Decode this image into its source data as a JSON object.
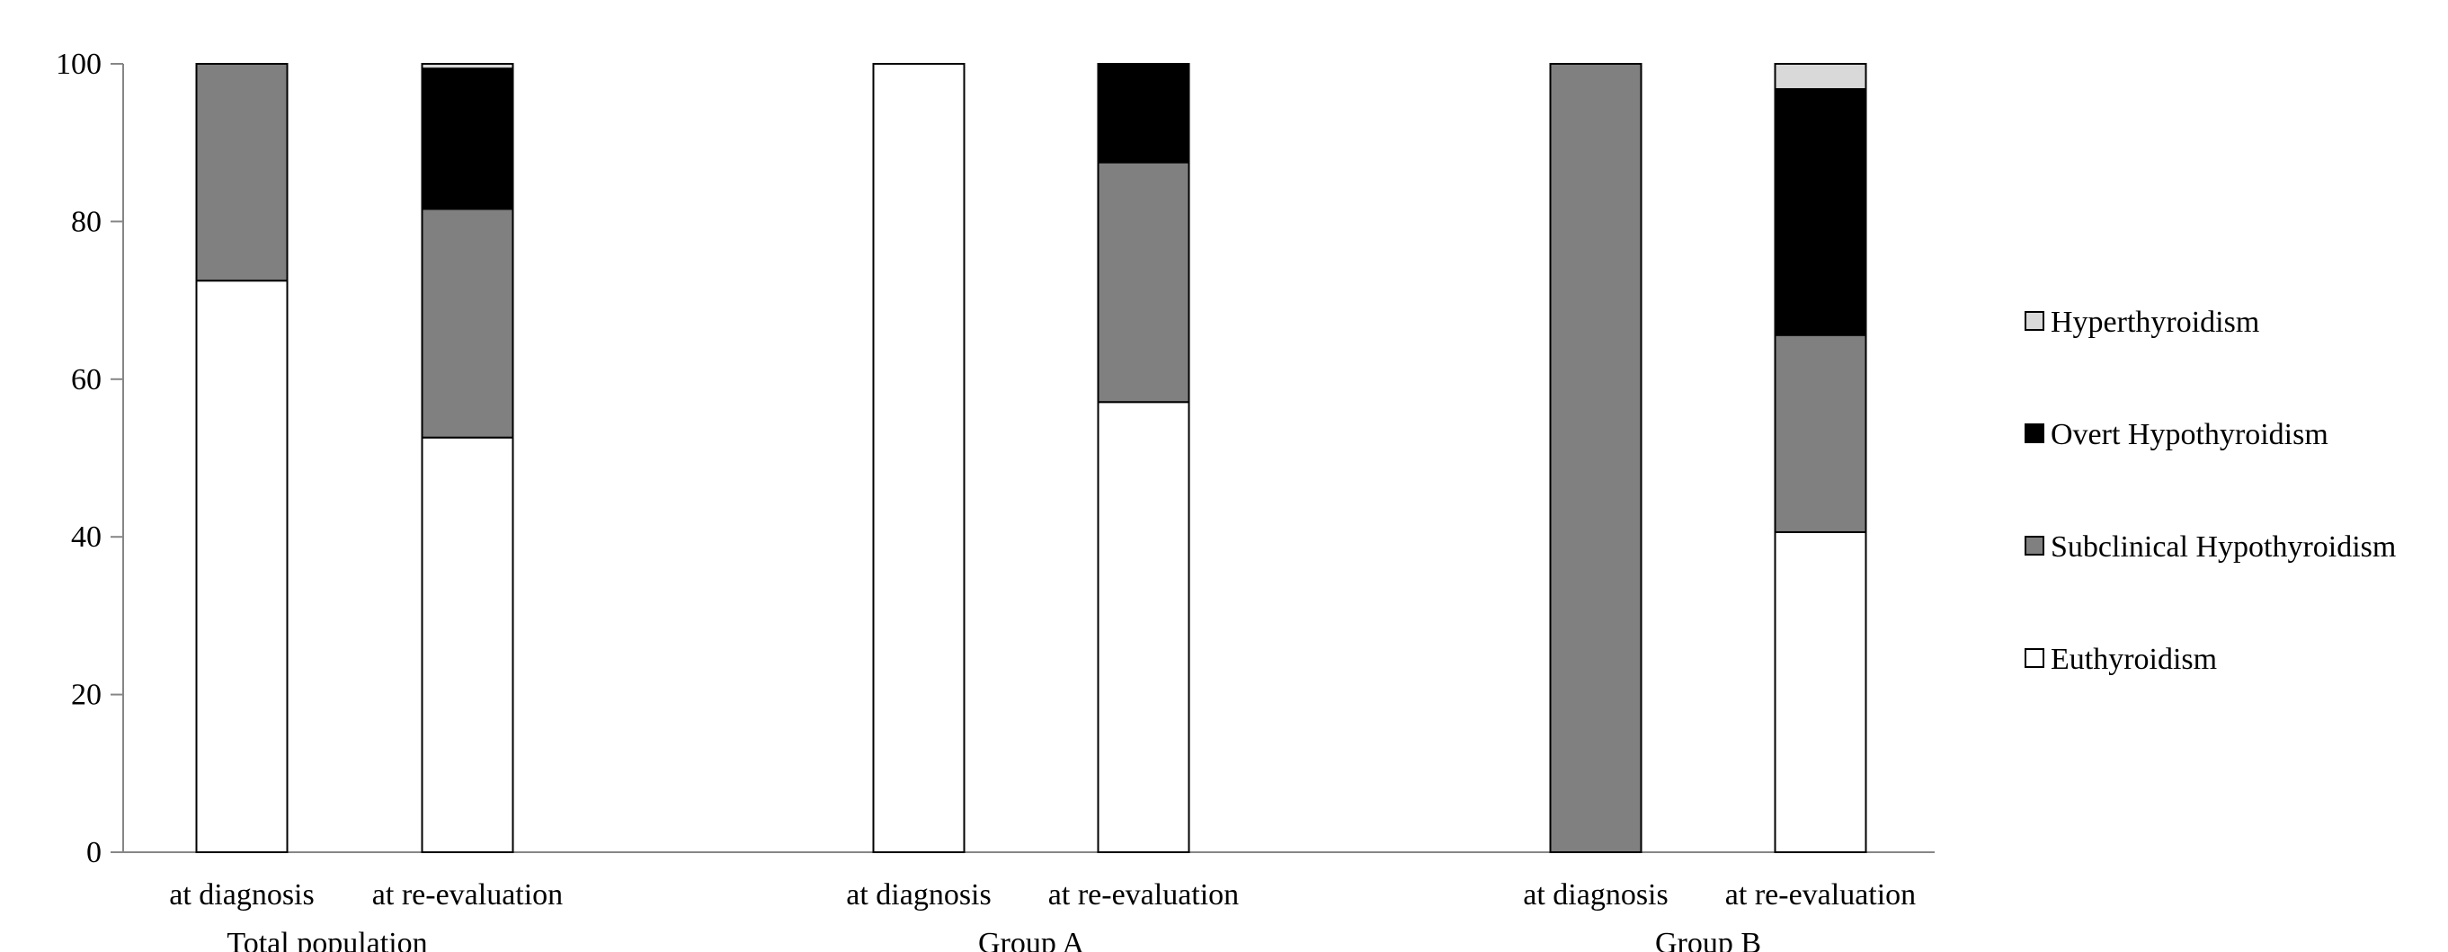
{
  "chart_data": {
    "type": "bar",
    "stacked": true,
    "ylim": [
      0,
      100
    ],
    "yticks": [
      0,
      20,
      40,
      60,
      80,
      100
    ],
    "grid": false,
    "legend_position": "right",
    "groups": [
      {
        "label": "Total population",
        "categories": [
          "at diagnosis",
          "at re-evaluation"
        ]
      },
      {
        "label": "Group A",
        "categories": [
          "at diagnosis",
          "at re-evaluation"
        ]
      },
      {
        "label": "Group B",
        "categories": [
          "at diagnosis",
          "at re-evaluation"
        ]
      }
    ],
    "series": [
      {
        "name": "Euthyroidism",
        "color": "#ffffff",
        "values": [
          72.5,
          52.6,
          100,
          57.1,
          0,
          40.6
        ]
      },
      {
        "name": "Subclinical Hypothyroidism",
        "color": "#808080",
        "values": [
          27.5,
          29.0,
          0,
          30.4,
          100,
          25.0
        ]
      },
      {
        "name": "Overt Hypothyroidism",
        "color": "#000000",
        "values": [
          0,
          17.8,
          0,
          12.5,
          0,
          31.2
        ]
      },
      {
        "name": "Hyperthyroidism",
        "color": "#d9d9d9",
        "values": [
          0,
          0.6,
          0,
          0,
          0,
          3.2
        ]
      }
    ],
    "legend_order": [
      "Hyperthyroidism",
      "Overt Hypothyroidism",
      "Subclinical Hypothyroidism",
      "Euthyroidism"
    ]
  }
}
